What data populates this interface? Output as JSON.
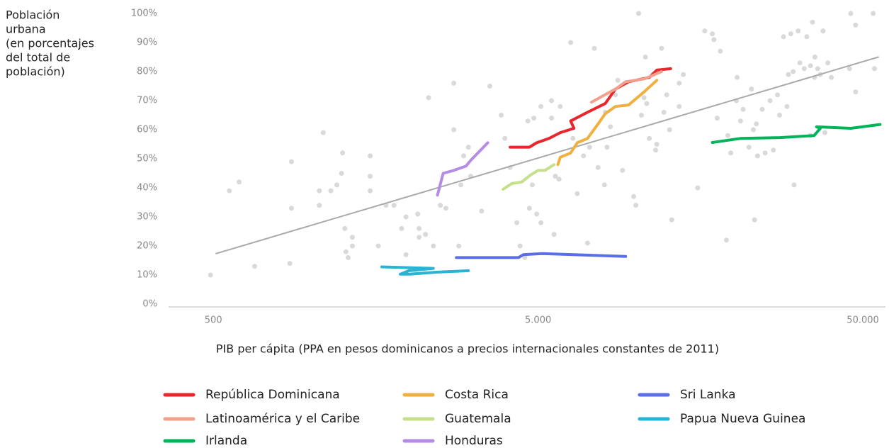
{
  "chart_data": {
    "type": "scatter",
    "y_label": [
      "Población",
      "urbana",
      "(en porcentajes",
      "del total de",
      "población)"
    ],
    "x_label": "PIB per cápita (PPA en pesos dominicanos a precios internacionales constantes de 2011)",
    "log_x": true,
    "xlim": [
      364,
      58700
    ],
    "ylim": [
      0,
      100
    ],
    "xticks": [
      500,
      {
        "value": 5000,
        "label": "5.000"
      },
      {
        "value": 50000,
        "label": "50.000"
      }
    ],
    "yticks": [
      {
        "value": 0,
        "label": "0%"
      },
      {
        "value": 10,
        "label": "10%"
      },
      {
        "value": 20,
        "label": "20%"
      },
      {
        "value": 30,
        "label": "30%"
      },
      {
        "value": 40,
        "label": "40%"
      },
      {
        "value": 50,
        "label": "50%"
      },
      {
        "value": 60,
        "label": "60%"
      },
      {
        "value": 70,
        "label": "70%"
      },
      {
        "value": 80,
        "label": "80%"
      },
      {
        "value": 90,
        "label": "90%"
      },
      {
        "value": 100,
        "label": "100%"
      }
    ],
    "points": {
      "color": "#d9d9d9",
      "x": [
        490,
        560,
        600,
        670,
        860,
        870,
        870,
        1060,
        1060,
        1090,
        1150,
        1200,
        1240,
        1250,
        1270,
        1280,
        1300,
        1340,
        1340,
        1520,
        1520,
        1520,
        1610,
        1700,
        1800,
        1900,
        1960,
        1960,
        2130,
        2150,
        2150,
        2250,
        2300,
        2380,
        2500,
        2600,
        2750,
        2750,
        2850,
        2890,
        2950,
        3050,
        3100,
        3350,
        3550,
        3850,
        3950,
        4100,
        4300,
        4400,
        4550,
        4650,
        4700,
        4800,
        4850,
        4950,
        5100,
        5100,
        5500,
        5500,
        5600,
        5650,
        5800,
        5850,
        6300,
        6400,
        6600,
        6900,
        7100,
        7200,
        7450,
        7650,
        8000,
        8050,
        8150,
        8350,
        8650,
        8800,
        9100,
        9850,
        10000,
        10200,
        10400,
        10600,
        10700,
        10800,
        11000,
        11300,
        11500,
        11600,
        12000,
        12200,
        12450,
        12700,
        12900,
        13600,
        13600,
        14000,
        15500,
        16300,
        17200,
        17400,
        17800,
        18200,
        19000,
        19200,
        19600,
        20400,
        20500,
        21000,
        21400,
        22300,
        22700,
        23000,
        23200,
        23500,
        23700,
        24500,
        25000,
        25900,
        26500,
        27300,
        27700,
        28500,
        29200,
        29500,
        30000,
        30500,
        30700,
        31600,
        32000,
        33000,
        33600,
        34500,
        34500,
        35600,
        35000,
        35500,
        36300,
        37000,
        37700,
        38200,
        39000,
        40000,
        45500,
        45900,
        47500,
        47500,
        53800,
        54300
      ],
      "y": [
        10,
        39,
        42,
        13,
        14,
        33,
        49,
        34,
        39,
        59,
        39,
        41,
        45,
        52,
        26,
        18,
        16,
        23,
        20,
        39,
        44,
        51,
        20,
        34,
        34,
        26,
        17,
        30,
        31,
        26,
        23,
        24,
        71,
        20,
        34,
        33,
        76,
        60,
        20,
        41,
        51,
        54,
        44,
        32,
        75,
        65,
        57,
        47,
        28,
        20,
        16,
        63,
        33,
        41,
        64,
        31,
        28,
        68,
        70,
        64,
        24,
        44,
        43,
        68,
        90,
        57,
        38,
        51,
        21,
        54,
        88,
        47,
        41,
        66,
        54,
        61,
        72,
        77,
        46,
        37,
        34,
        100,
        65,
        71,
        85,
        69,
        57,
        79,
        53,
        55,
        88,
        66,
        72,
        60,
        29,
        76,
        68,
        79,
        40,
        94,
        93,
        91,
        64,
        87,
        22,
        58,
        52,
        70,
        78,
        63,
        67,
        54,
        74,
        60,
        29,
        62,
        51,
        67,
        52,
        70,
        53,
        72,
        65,
        92,
        68,
        79,
        93,
        80,
        41,
        94,
        83,
        81,
        92,
        82,
        58,
        85,
        97,
        78,
        81,
        79,
        94,
        59,
        83,
        78,
        81,
        100,
        96,
        73,
        100,
        81
      ]
    },
    "trend": {
      "color": "#aaaaaa",
      "x": [
        510,
        55800
      ],
      "y": [
        17.4,
        85
      ]
    },
    "series": [
      {
        "name": "República Dominicana",
        "color": "#e8262c",
        "x": [
          4100,
          4700,
          4950,
          5400,
          5850,
          6450,
          6300,
          7100,
          8050,
          8650,
          9500,
          11000,
          11600,
          12800
        ],
        "y": [
          54,
          54,
          55.5,
          57,
          59,
          60.5,
          63,
          66,
          69,
          74,
          76.5,
          78,
          80.5,
          81
        ]
      },
      {
        "name": "Latinoamérica y el Caribe",
        "color": "#f0a08c",
        "x": [
          7300,
          8650,
          9300,
          10600,
          12000
        ],
        "y": [
          69.5,
          74,
          76.5,
          77.5,
          80
        ]
      },
      {
        "name": "Irlanda",
        "color": "#00b45a",
        "x": [
          17200,
          21000,
          27800,
          35400,
          37000,
          36000,
          45900,
          56500
        ],
        "y": [
          55.6,
          57,
          57.3,
          58,
          60.5,
          61,
          60.5,
          61.8
        ]
      },
      {
        "name": "Costa Rica",
        "color": "#f0b040",
        "x": [
          5750,
          5850,
          6300,
          6600,
          7100,
          7650,
          8050,
          8650,
          9500,
          10600,
          11600
        ],
        "y": [
          48,
          50.5,
          52,
          55.5,
          57,
          62,
          65.5,
          68,
          68.5,
          73,
          77
        ]
      },
      {
        "name": "Guatemala",
        "color": "#c5e08a",
        "x": [
          3900,
          4150,
          4450,
          4750,
          5000,
          5250,
          5600
        ],
        "y": [
          39.5,
          41.5,
          42,
          44.5,
          46,
          46,
          48
        ]
      },
      {
        "name": "Honduras",
        "color": "#b48ce6",
        "x": [
          2450,
          2550,
          2750,
          3000,
          3100,
          3500
        ],
        "y": [
          37.5,
          45,
          46,
          47.5,
          49.5,
          55.5
        ]
      },
      {
        "name": "Sri Lanka",
        "color": "#5a6ee6",
        "x": [
          2800,
          4350,
          4500,
          5150,
          9300
        ],
        "y": [
          16,
          16,
          17,
          17.4,
          16.4
        ]
      },
      {
        "name": "Papua Nueva Guinea",
        "color": "#28b4d2",
        "x": [
          1650,
          2380,
          2000,
          1880,
          2010,
          2450,
          3050
        ],
        "y": [
          12.8,
          12.3,
          11.5,
          10.3,
          10.3,
          11,
          11.5
        ]
      }
    ]
  }
}
